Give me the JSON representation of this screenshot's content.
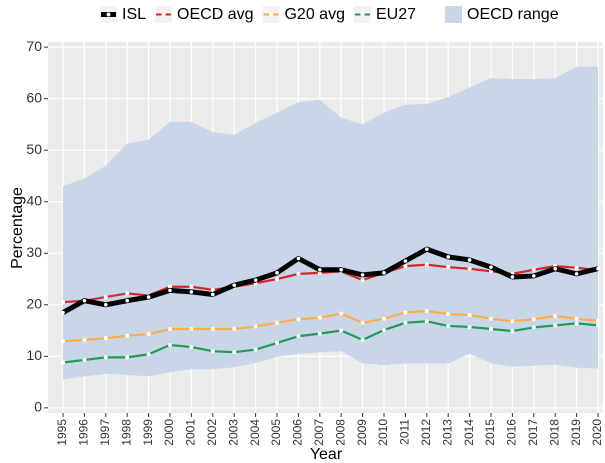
{
  "chart_data": {
    "type": "line",
    "x_label": "Year",
    "y_label": "Percentage",
    "categories": [
      "1995",
      "1996",
      "1997",
      "1998",
      "1999",
      "2000",
      "2001",
      "2002",
      "2003",
      "2004",
      "2005",
      "2006",
      "2007",
      "2008",
      "2009",
      "2010",
      "2011",
      "2012",
      "2013",
      "2014",
      "2015",
      "2016",
      "2017",
      "2018",
      "2019",
      "2020"
    ],
    "series": [
      {
        "name": "ISL",
        "color": "#000000",
        "values": [
          18.5,
          20.8,
          20.0,
          20.8,
          21.5,
          22.8,
          22.5,
          22.0,
          23.8,
          24.8,
          26.2,
          29.0,
          26.8,
          26.8,
          25.8,
          26.2,
          28.5,
          30.8,
          29.3,
          28.7,
          27.3,
          25.4,
          25.6,
          27.0,
          26.0,
          27.0
        ]
      },
      {
        "name": "OECD avg",
        "color": "#d7262b",
        "values": [
          20.5,
          20.8,
          21.5,
          22.2,
          21.8,
          23.5,
          23.5,
          22.9,
          23.5,
          24.2,
          25.0,
          26.0,
          26.2,
          26.5,
          24.8,
          26.2,
          27.5,
          27.8,
          27.3,
          27.0,
          26.5,
          26.0,
          26.8,
          27.5,
          27.2,
          26.7
        ]
      },
      {
        "name": "G20 avg",
        "color": "#fdae4b",
        "values": [
          12.9,
          13.2,
          13.5,
          14.0,
          14.3,
          15.3,
          15.3,
          15.3,
          15.3,
          15.8,
          16.5,
          17.2,
          17.5,
          18.3,
          16.5,
          17.3,
          18.5,
          18.8,
          18.2,
          18.0,
          17.3,
          16.8,
          17.2,
          17.8,
          17.3,
          16.9
        ]
      },
      {
        "name": "EU27",
        "color": "#1f9a57",
        "values": [
          8.8,
          9.3,
          9.8,
          9.8,
          10.4,
          12.2,
          11.8,
          11.0,
          10.8,
          11.3,
          12.6,
          13.9,
          14.4,
          15.0,
          13.2,
          15.1,
          16.5,
          16.8,
          15.9,
          15.7,
          15.3,
          14.9,
          15.6,
          16.0,
          16.4,
          16.0
        ]
      }
    ],
    "range": {
      "name": "OECD range",
      "color": "#c8d6e8",
      "high": [
        43,
        44.5,
        47,
        51.3,
        52,
        55.5,
        55.5,
        53.5,
        53,
        55.3,
        57.3,
        59.3,
        59.8,
        56.3,
        55,
        57.3,
        58.8,
        59,
        60.3,
        62.2,
        64,
        63.8,
        63.8,
        64,
        66.2,
        66.2
      ],
      "low": [
        5.5,
        6.1,
        6.6,
        6.4,
        6.1,
        6.9,
        7.5,
        7.5,
        7.9,
        8.7,
        9.9,
        10.5,
        10.8,
        11,
        8.6,
        8.3,
        8.6,
        8.6,
        8.6,
        10.5,
        8.6,
        8.0,
        8.2,
        8.4,
        7.8,
        7.6
      ]
    },
    "ylim": [
      -1,
      71
    ],
    "yticks": [
      0,
      10,
      20,
      30,
      40,
      50,
      60,
      70
    ],
    "grid": true
  }
}
